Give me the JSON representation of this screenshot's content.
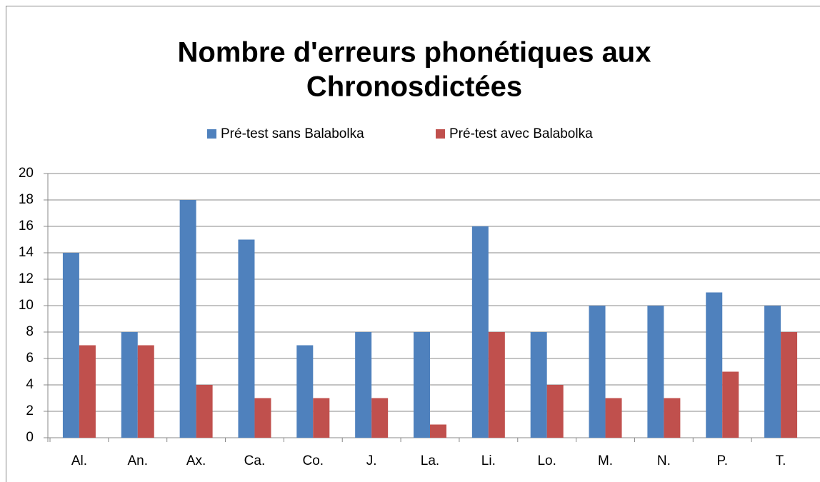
{
  "chart_data": {
    "type": "bar",
    "title": [
      "Nombre d'erreurs phonétiques aux",
      "Chronosdictées"
    ],
    "categories": [
      "Al.",
      "An.",
      "Ax.",
      "Ca.",
      "Co.",
      "J.",
      "La.",
      "Li.",
      "Lo.",
      "M.",
      "N.",
      "P.",
      "T."
    ],
    "series": [
      {
        "name": "Pré-test sans Balabolka",
        "color": "#4f81bd",
        "values": [
          14,
          8,
          18,
          15,
          7,
          8,
          8,
          16,
          8,
          10,
          10,
          11,
          10
        ]
      },
      {
        "name": "Pré-test avec Balabolka",
        "color": "#c0504d",
        "values": [
          7,
          7,
          4,
          3,
          3,
          3,
          1,
          8,
          4,
          3,
          3,
          5,
          8
        ]
      }
    ],
    "ylim": [
      0,
      20
    ],
    "yticks": [
      0,
      2,
      4,
      6,
      8,
      10,
      12,
      14,
      16,
      18,
      20
    ],
    "grid": true,
    "legend": "top"
  }
}
